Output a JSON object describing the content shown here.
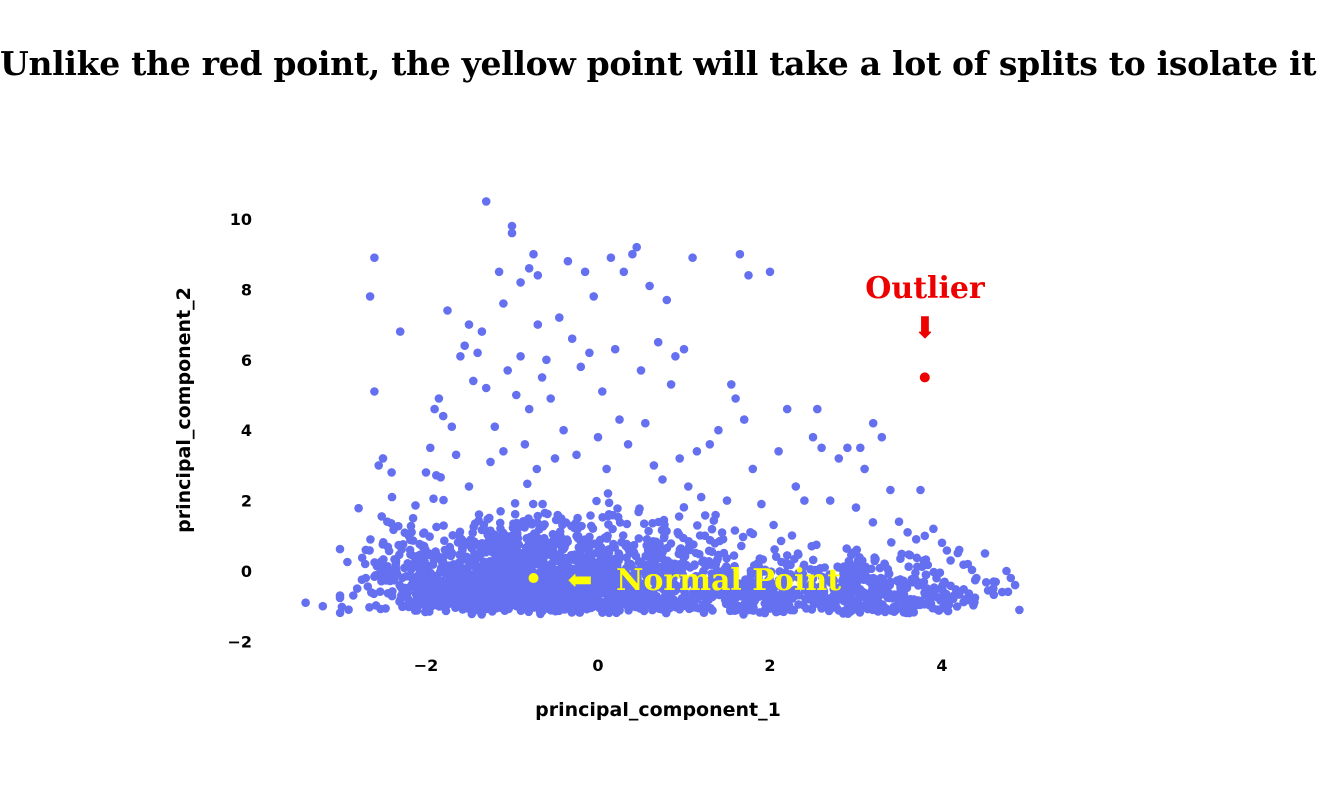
{
  "headline": "Unlike the red point, the yellow point will take a lot of splits to isolate it.",
  "chart_data": {
    "type": "scatter",
    "title": "",
    "xlabel": "principal_component_1",
    "ylabel": "principal_component_2",
    "xlim": [
      -3.5,
      4.9
    ],
    "ylim": [
      -2,
      10.6
    ],
    "xticks": [
      -2,
      0,
      2,
      4
    ],
    "yticks": [
      -2,
      0,
      2,
      4,
      6,
      8,
      10
    ],
    "grid": false,
    "point_color": "#6470f0",
    "outlier": {
      "label": "Outlier",
      "x": 3.8,
      "y": 5.5,
      "color": "#ee0000",
      "arrow": "⬇"
    },
    "normal": {
      "label": "Normal Point",
      "x": -0.75,
      "y": -0.2,
      "color": "#ffff00",
      "arrow": "⬅"
    },
    "points": [
      [
        -3.4,
        -0.9
      ],
      [
        -3.2,
        -1.0
      ],
      [
        -3.0,
        -0.7
      ],
      [
        -2.9,
        -1.1
      ],
      [
        -2.8,
        -0.5
      ],
      [
        -2.7,
        0.6
      ],
      [
        -2.7,
        -0.2
      ],
      [
        -2.65,
        7.8
      ],
      [
        -2.6,
        8.9
      ],
      [
        -2.6,
        5.1
      ],
      [
        -2.55,
        3.0
      ],
      [
        -2.5,
        3.2
      ],
      [
        -2.45,
        1.4
      ],
      [
        -2.4,
        2.8
      ],
      [
        -2.35,
        0.2
      ],
      [
        -2.3,
        6.8
      ],
      [
        -2.2,
        1.0
      ],
      [
        -2.15,
        1.5
      ],
      [
        -2.1,
        0.4
      ],
      [
        -2.0,
        2.8
      ],
      [
        -1.95,
        3.5
      ],
      [
        -1.9,
        4.6
      ],
      [
        -1.85,
        4.9
      ],
      [
        -1.8,
        4.4
      ],
      [
        -1.75,
        7.4
      ],
      [
        -1.7,
        4.1
      ],
      [
        -1.65,
        3.3
      ],
      [
        -1.6,
        6.1
      ],
      [
        -1.55,
        6.4
      ],
      [
        -1.5,
        7.0
      ],
      [
        -1.5,
        2.4
      ],
      [
        -1.45,
        5.4
      ],
      [
        -1.4,
        6.2
      ],
      [
        -1.35,
        6.8
      ],
      [
        -1.3,
        5.2
      ],
      [
        -1.3,
        10.5
      ],
      [
        -1.25,
        3.1
      ],
      [
        -1.2,
        4.1
      ],
      [
        -1.15,
        8.5
      ],
      [
        -1.1,
        7.6
      ],
      [
        -1.1,
        3.4
      ],
      [
        -1.05,
        5.7
      ],
      [
        -1.0,
        9.8
      ],
      [
        -1.0,
        9.6
      ],
      [
        -0.95,
        5.0
      ],
      [
        -0.9,
        8.2
      ],
      [
        -0.9,
        6.1
      ],
      [
        -0.85,
        3.6
      ],
      [
        -0.8,
        8.6
      ],
      [
        -0.8,
        4.6
      ],
      [
        -0.75,
        9.0
      ],
      [
        -0.7,
        7.0
      ],
      [
        -0.7,
        8.4
      ],
      [
        -0.65,
        5.5
      ],
      [
        -0.6,
        6.0
      ],
      [
        -0.55,
        4.9
      ],
      [
        -0.5,
        3.2
      ],
      [
        -0.45,
        7.2
      ],
      [
        -0.4,
        4.0
      ],
      [
        -0.35,
        8.8
      ],
      [
        -0.3,
        6.6
      ],
      [
        -0.25,
        3.3
      ],
      [
        -0.2,
        5.8
      ],
      [
        -0.15,
        8.5
      ],
      [
        -0.1,
        6.2
      ],
      [
        -0.05,
        7.8
      ],
      [
        0.0,
        3.8
      ],
      [
        0.05,
        5.1
      ],
      [
        0.1,
        2.9
      ],
      [
        0.15,
        8.9
      ],
      [
        0.2,
        6.3
      ],
      [
        0.25,
        4.3
      ],
      [
        0.3,
        8.5
      ],
      [
        0.35,
        3.6
      ],
      [
        0.4,
        9.0
      ],
      [
        0.45,
        9.2
      ],
      [
        0.5,
        5.7
      ],
      [
        0.55,
        4.2
      ],
      [
        0.6,
        8.1
      ],
      [
        0.65,
        3.0
      ],
      [
        0.7,
        6.5
      ],
      [
        0.75,
        2.6
      ],
      [
        0.8,
        7.7
      ],
      [
        0.85,
        5.3
      ],
      [
        0.9,
        6.1
      ],
      [
        0.95,
        3.2
      ],
      [
        1.0,
        6.3
      ],
      [
        1.05,
        2.4
      ],
      [
        1.1,
        8.9
      ],
      [
        1.15,
        3.4
      ],
      [
        1.2,
        2.1
      ],
      [
        1.3,
        3.6
      ],
      [
        1.4,
        4.0
      ],
      [
        1.5,
        2.0
      ],
      [
        1.55,
        5.3
      ],
      [
        1.6,
        4.9
      ],
      [
        1.65,
        9.0
      ],
      [
        1.7,
        4.3
      ],
      [
        1.75,
        8.4
      ],
      [
        1.8,
        2.9
      ],
      [
        1.9,
        1.9
      ],
      [
        2.0,
        8.5
      ],
      [
        2.1,
        3.4
      ],
      [
        2.2,
        4.6
      ],
      [
        2.3,
        2.4
      ],
      [
        2.4,
        2.0
      ],
      [
        2.5,
        3.8
      ],
      [
        2.55,
        4.6
      ],
      [
        2.6,
        3.5
      ],
      [
        2.7,
        2.0
      ],
      [
        2.8,
        3.2
      ],
      [
        2.9,
        3.5
      ],
      [
        3.0,
        1.8
      ],
      [
        3.05,
        3.5
      ],
      [
        3.1,
        2.9
      ],
      [
        3.2,
        4.2
      ],
      [
        3.3,
        3.8
      ],
      [
        3.4,
        2.3
      ],
      [
        3.5,
        1.4
      ],
      [
        3.6,
        1.1
      ],
      [
        3.7,
        0.9
      ],
      [
        3.75,
        2.3
      ],
      [
        3.8,
        1.0
      ],
      [
        3.9,
        1.2
      ],
      [
        4.0,
        0.8
      ],
      [
        4.1,
        0.3
      ],
      [
        4.2,
        0.6
      ],
      [
        4.3,
        0.2
      ],
      [
        4.4,
        -0.2
      ],
      [
        4.5,
        0.5
      ],
      [
        4.6,
        -0.3
      ],
      [
        4.7,
        -0.6
      ],
      [
        4.75,
        0.0
      ],
      [
        4.8,
        -0.2
      ],
      [
        4.85,
        -0.4
      ]
    ],
    "cluster_seed": 7,
    "cluster_count": 2600
  }
}
